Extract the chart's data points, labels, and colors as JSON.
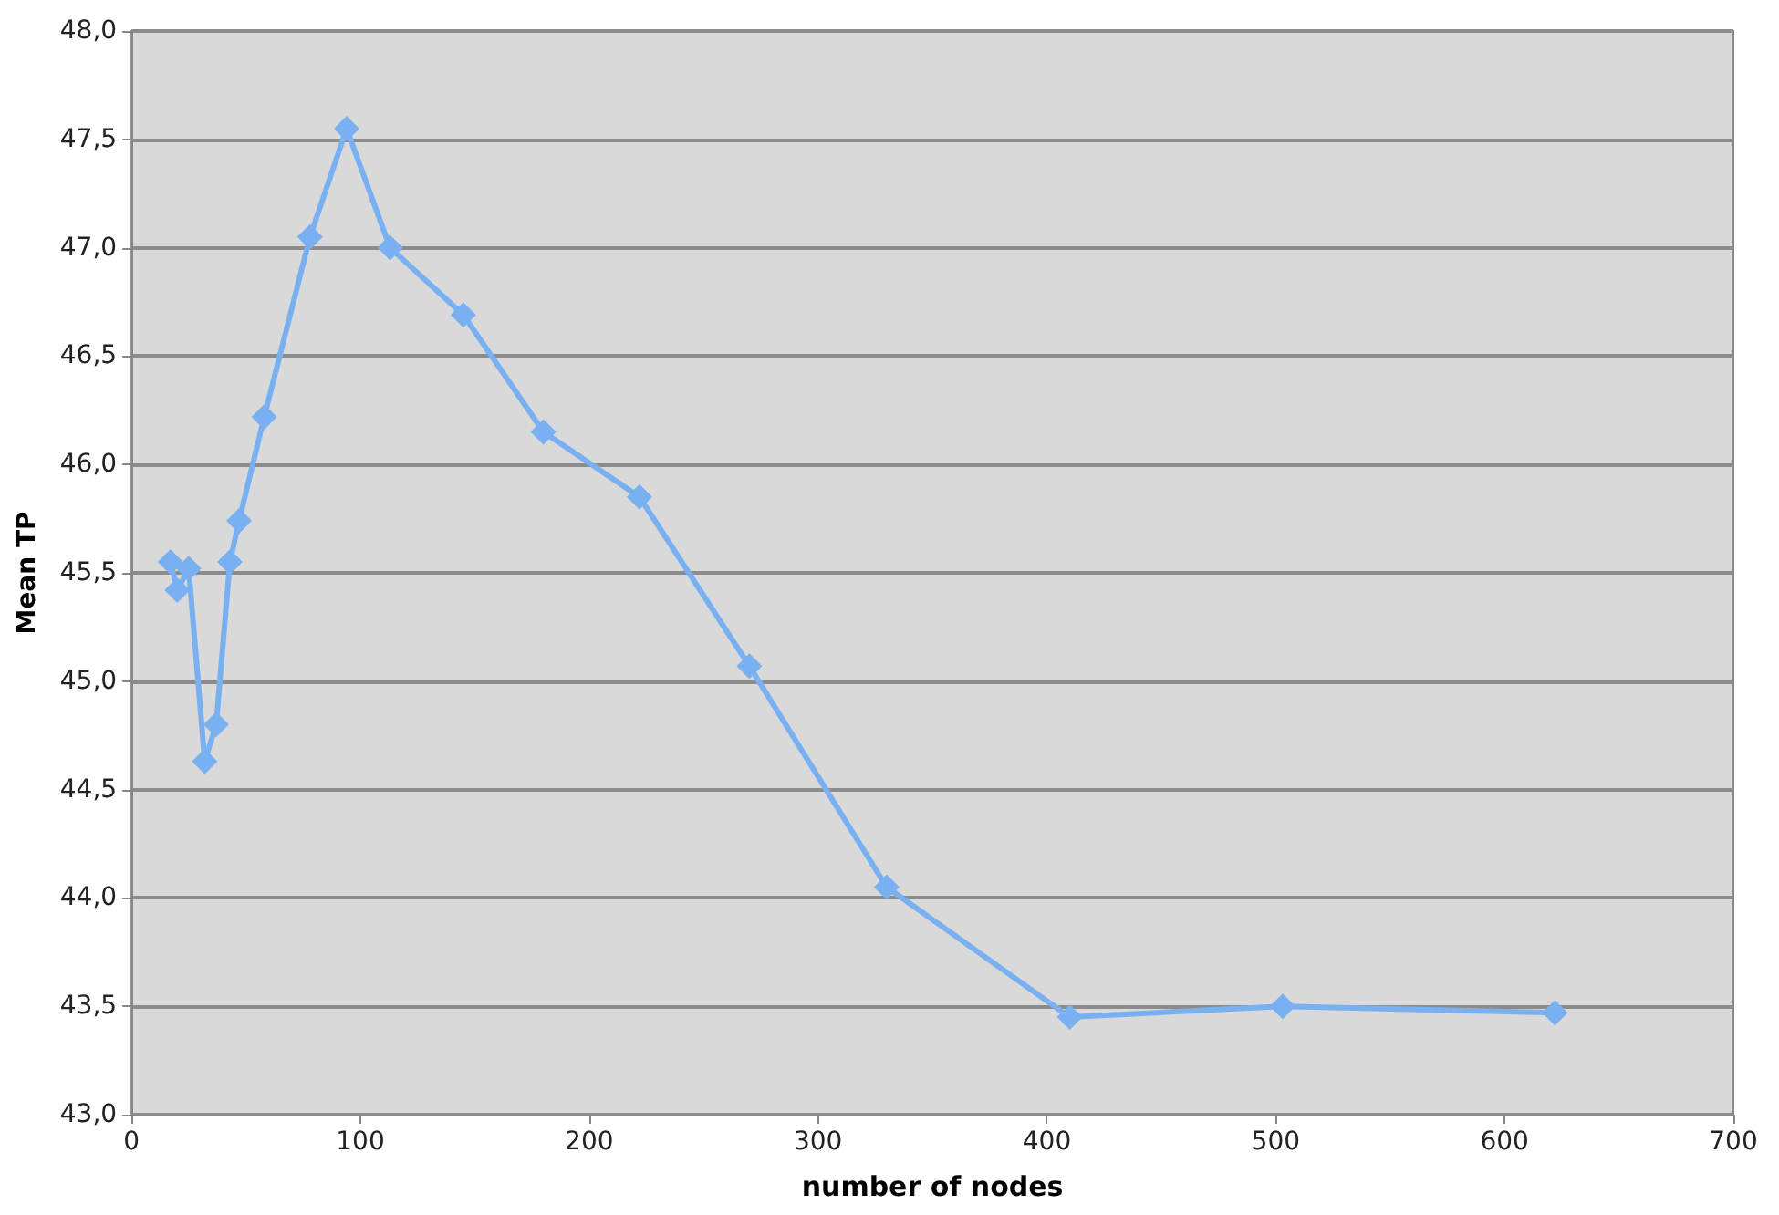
{
  "chart_data": {
    "type": "line",
    "xlabel": "number of nodes",
    "ylabel": "Mean TP",
    "x": [
      17,
      20,
      25,
      32,
      37,
      43,
      47,
      58,
      78,
      94,
      113,
      145,
      180,
      222,
      270,
      330,
      410,
      503,
      622
    ],
    "series": [
      {
        "color": "#78b0f2",
        "values": [
          45.55,
          45.42,
          45.52,
          44.63,
          44.8,
          45.55,
          45.74,
          46.22,
          47.05,
          47.55,
          47.0,
          46.69,
          46.15,
          45.85,
          45.07,
          44.05,
          43.45,
          43.5,
          43.47
        ]
      }
    ],
    "xlim": [
      0,
      700
    ],
    "xticks": [
      0,
      100,
      200,
      300,
      400,
      500,
      600,
      700
    ],
    "ylim": [
      43,
      48
    ],
    "yticks": [
      {
        "value": 43,
        "label": "43,0"
      },
      {
        "value": 43.5,
        "label": "43,5"
      },
      {
        "value": 44,
        "label": "44,0"
      },
      {
        "value": 44.5,
        "label": "44,5"
      },
      {
        "value": 45,
        "label": "45,0"
      },
      {
        "value": 45.5,
        "label": "45,5"
      },
      {
        "value": 46,
        "label": "46,0"
      },
      {
        "value": 46.5,
        "label": "46,5"
      },
      {
        "value": 47,
        "label": "47,0"
      },
      {
        "value": 47.5,
        "label": "47,5"
      },
      {
        "value": 48,
        "label": "48,0"
      }
    ],
    "grid": "y",
    "marker": "diamond",
    "line_style": "solid"
  }
}
